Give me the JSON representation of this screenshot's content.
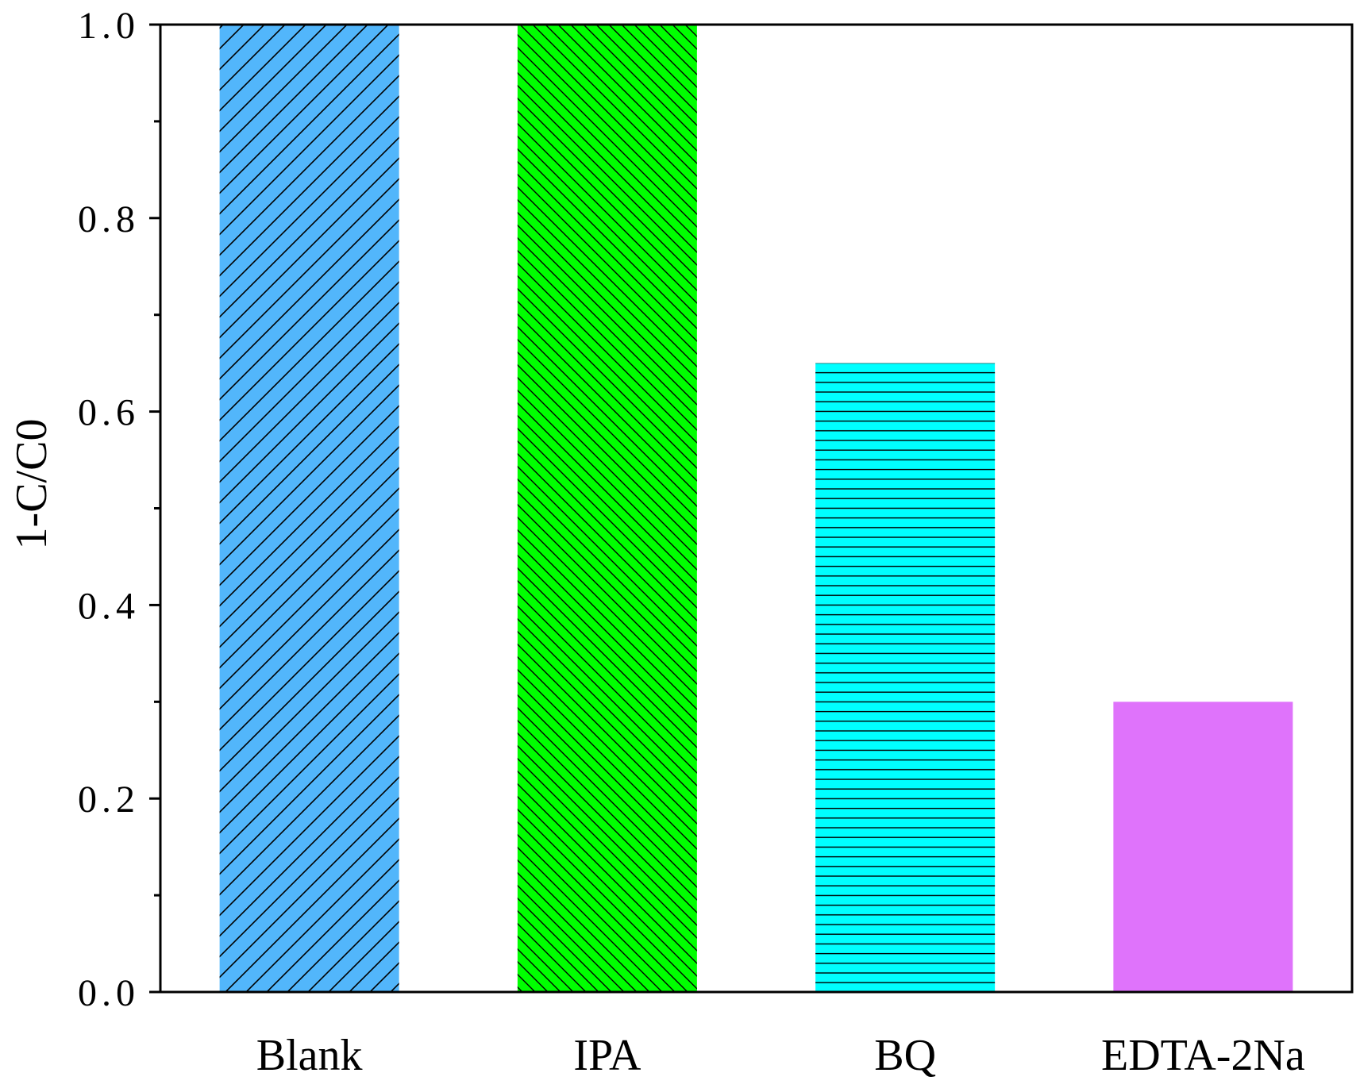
{
  "chart_data": {
    "type": "bar",
    "title": "",
    "xlabel": "",
    "ylabel": "1-C/C0",
    "categories": [
      "Blank",
      "IPA",
      "BQ",
      "EDTA-2Na"
    ],
    "values": [
      1.0,
      1.0,
      0.65,
      0.3
    ],
    "ylim": [
      0.0,
      1.0
    ],
    "y_ticks": [
      {
        "value": 0.0,
        "label": "0.0"
      },
      {
        "value": 0.2,
        "label": "0.2"
      },
      {
        "value": 0.4,
        "label": "0.4"
      },
      {
        "value": 0.6,
        "label": "0.6"
      },
      {
        "value": 0.8,
        "label": "0.8"
      },
      {
        "value": 1.0,
        "label": "1.0"
      }
    ],
    "y_minor_ticks": [
      0.1,
      0.3,
      0.5,
      0.7,
      0.9
    ],
    "grid": false,
    "bar_styles": [
      {
        "color": "#52b6fb",
        "pattern": "diagonal-forward"
      },
      {
        "color": "#00ff00",
        "pattern": "diagonal-backward"
      },
      {
        "color": "#00ffff",
        "pattern": "horizontal"
      },
      {
        "color": "#df73fb",
        "pattern": "none"
      }
    ]
  }
}
